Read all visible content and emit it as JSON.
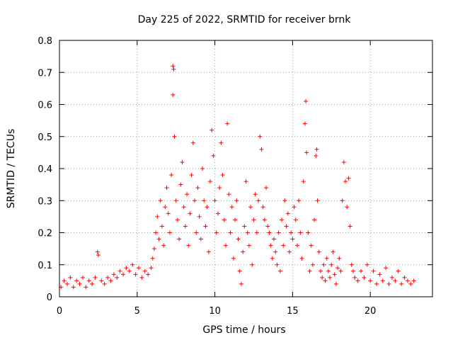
{
  "chart_data": {
    "type": "scatter",
    "title": "Day 225 of 2022, SRMTID for receiver brnk",
    "xlabel": "GPS time / hours",
    "ylabel": "SRMTID / TECUs",
    "xlim": [
      0,
      24
    ],
    "ylim": [
      0,
      0.8
    ],
    "x_ticks": [
      0,
      5,
      10,
      15,
      20
    ],
    "y_ticks": [
      0,
      0.1,
      0.2,
      0.3,
      0.4,
      0.5,
      0.6,
      0.7,
      0.8
    ],
    "x_tick_labels": [
      "0",
      "5",
      "10",
      "15",
      "20"
    ],
    "y_tick_labels": [
      "0",
      "0.1",
      "0.2",
      "0.3",
      "0.4",
      "0.5",
      "0.6",
      "0.7",
      "0.8"
    ],
    "grid": true,
    "marker": "plus",
    "color": "#ff0000",
    "series": [
      {
        "name": "SRMTID",
        "points": [
          [
            0.1,
            0.03
          ],
          [
            0.3,
            0.05
          ],
          [
            0.5,
            0.04
          ],
          [
            0.7,
            0.06
          ],
          [
            0.9,
            0.03
          ],
          [
            1.1,
            0.05
          ],
          [
            1.3,
            0.04
          ],
          [
            1.5,
            0.06
          ],
          [
            1.7,
            0.03
          ],
          [
            1.9,
            0.05
          ],
          [
            2.1,
            0.04
          ],
          [
            2.3,
            0.06
          ],
          [
            2.45,
            0.14
          ],
          [
            2.5,
            0.13
          ],
          [
            2.7,
            0.05
          ],
          [
            2.9,
            0.04
          ],
          [
            3.1,
            0.06
          ],
          [
            3.3,
            0.05
          ],
          [
            3.5,
            0.07
          ],
          [
            3.7,
            0.06
          ],
          [
            3.9,
            0.08
          ],
          [
            4.1,
            0.07
          ],
          [
            4.3,
            0.09
          ],
          [
            4.5,
            0.08
          ],
          [
            4.7,
            0.1
          ],
          [
            4.9,
            0.07
          ],
          [
            5.1,
            0.09
          ],
          [
            5.3,
            0.06
          ],
          [
            5.5,
            0.08
          ],
          [
            5.7,
            0.07
          ],
          [
            5.9,
            0.09
          ],
          [
            6.0,
            0.12
          ],
          [
            6.1,
            0.15
          ],
          [
            6.2,
            0.2
          ],
          [
            6.3,
            0.25
          ],
          [
            6.4,
            0.18
          ],
          [
            6.5,
            0.3
          ],
          [
            6.6,
            0.22
          ],
          [
            6.7,
            0.16
          ],
          [
            6.8,
            0.28
          ],
          [
            6.9,
            0.34
          ],
          [
            7.0,
            0.26
          ],
          [
            7.1,
            0.2
          ],
          [
            7.2,
            0.38
          ],
          [
            7.3,
            0.72
          ],
          [
            7.35,
            0.71
          ],
          [
            7.3,
            0.63
          ],
          [
            7.4,
            0.5
          ],
          [
            7.5,
            0.3
          ],
          [
            7.6,
            0.24
          ],
          [
            7.7,
            0.18
          ],
          [
            7.8,
            0.35
          ],
          [
            7.9,
            0.42
          ],
          [
            8.0,
            0.28
          ],
          [
            8.1,
            0.22
          ],
          [
            8.2,
            0.32
          ],
          [
            8.3,
            0.16
          ],
          [
            8.4,
            0.26
          ],
          [
            8.5,
            0.38
          ],
          [
            8.6,
            0.48
          ],
          [
            8.7,
            0.3
          ],
          [
            8.8,
            0.2
          ],
          [
            8.9,
            0.34
          ],
          [
            9.0,
            0.25
          ],
          [
            9.1,
            0.18
          ],
          [
            9.2,
            0.4
          ],
          [
            9.3,
            0.3
          ],
          [
            9.4,
            0.22
          ],
          [
            9.5,
            0.28
          ],
          [
            9.6,
            0.14
          ],
          [
            9.7,
            0.36
          ],
          [
            9.8,
            0.52
          ],
          [
            9.9,
            0.44
          ],
          [
            10.0,
            0.3
          ],
          [
            10.1,
            0.2
          ],
          [
            10.2,
            0.26
          ],
          [
            10.3,
            0.34
          ],
          [
            10.4,
            0.48
          ],
          [
            10.5,
            0.38
          ],
          [
            10.6,
            0.24
          ],
          [
            10.7,
            0.16
          ],
          [
            10.8,
            0.54
          ],
          [
            10.9,
            0.32
          ],
          [
            11.0,
            0.2
          ],
          [
            11.1,
            0.28
          ],
          [
            11.2,
            0.12
          ],
          [
            11.3,
            0.24
          ],
          [
            11.4,
            0.3
          ],
          [
            11.5,
            0.18
          ],
          [
            11.6,
            0.08
          ],
          [
            11.7,
            0.04
          ],
          [
            11.8,
            0.14
          ],
          [
            11.9,
            0.22
          ],
          [
            12.0,
            0.36
          ],
          [
            12.1,
            0.2
          ],
          [
            12.2,
            0.16
          ],
          [
            12.3,
            0.28
          ],
          [
            12.4,
            0.1
          ],
          [
            12.5,
            0.24
          ],
          [
            12.6,
            0.32
          ],
          [
            12.7,
            0.2
          ],
          [
            12.8,
            0.3
          ],
          [
            12.9,
            0.5
          ],
          [
            13.0,
            0.46
          ],
          [
            13.1,
            0.28
          ],
          [
            13.2,
            0.24
          ],
          [
            13.3,
            0.34
          ],
          [
            13.4,
            0.22
          ],
          [
            13.5,
            0.2
          ],
          [
            13.6,
            0.16
          ],
          [
            13.7,
            0.12
          ],
          [
            13.8,
            0.18
          ],
          [
            13.9,
            0.14
          ],
          [
            14.0,
            0.1
          ],
          [
            14.1,
            0.2
          ],
          [
            14.2,
            0.08
          ],
          [
            14.3,
            0.24
          ],
          [
            14.4,
            0.16
          ],
          [
            14.5,
            0.3
          ],
          [
            14.6,
            0.22
          ],
          [
            14.7,
            0.26
          ],
          [
            14.8,
            0.14
          ],
          [
            14.9,
            0.2
          ],
          [
            15.0,
            0.18
          ],
          [
            15.1,
            0.28
          ],
          [
            15.2,
            0.24
          ],
          [
            15.3,
            0.16
          ],
          [
            15.4,
            0.3
          ],
          [
            15.5,
            0.2
          ],
          [
            15.6,
            0.12
          ],
          [
            15.7,
            0.36
          ],
          [
            15.8,
            0.54
          ],
          [
            15.85,
            0.61
          ],
          [
            15.9,
            0.45
          ],
          [
            16.0,
            0.2
          ],
          [
            16.1,
            0.08
          ],
          [
            16.2,
            0.16
          ],
          [
            16.3,
            0.1
          ],
          [
            16.4,
            0.24
          ],
          [
            16.5,
            0.44
          ],
          [
            16.55,
            0.46
          ],
          [
            16.6,
            0.3
          ],
          [
            16.7,
            0.14
          ],
          [
            16.8,
            0.08
          ],
          [
            16.9,
            0.06
          ],
          [
            17.0,
            0.1
          ],
          [
            17.1,
            0.05
          ],
          [
            17.2,
            0.12
          ],
          [
            17.3,
            0.08
          ],
          [
            17.4,
            0.06
          ],
          [
            17.5,
            0.1
          ],
          [
            17.6,
            0.14
          ],
          [
            17.7,
            0.07
          ],
          [
            17.8,
            0.04
          ],
          [
            17.9,
            0.09
          ],
          [
            18.0,
            0.12
          ],
          [
            18.1,
            0.08
          ],
          [
            18.2,
            0.3
          ],
          [
            18.3,
            0.42
          ],
          [
            18.4,
            0.36
          ],
          [
            18.5,
            0.28
          ],
          [
            18.6,
            0.37
          ],
          [
            18.7,
            0.22
          ],
          [
            18.8,
            0.1
          ],
          [
            18.9,
            0.08
          ],
          [
            19.0,
            0.06
          ],
          [
            19.2,
            0.05
          ],
          [
            19.4,
            0.08
          ],
          [
            19.6,
            0.06
          ],
          [
            19.8,
            0.1
          ],
          [
            20.0,
            0.05
          ],
          [
            20.2,
            0.08
          ],
          [
            20.4,
            0.04
          ],
          [
            20.6,
            0.07
          ],
          [
            20.8,
            0.05
          ],
          [
            21.0,
            0.09
          ],
          [
            21.2,
            0.04
          ],
          [
            21.4,
            0.06
          ],
          [
            21.6,
            0.05
          ],
          [
            21.8,
            0.08
          ],
          [
            22.0,
            0.04
          ],
          [
            22.2,
            0.06
          ],
          [
            22.4,
            0.05
          ],
          [
            22.6,
            0.04
          ],
          [
            22.8,
            0.05
          ]
        ]
      }
    ]
  }
}
